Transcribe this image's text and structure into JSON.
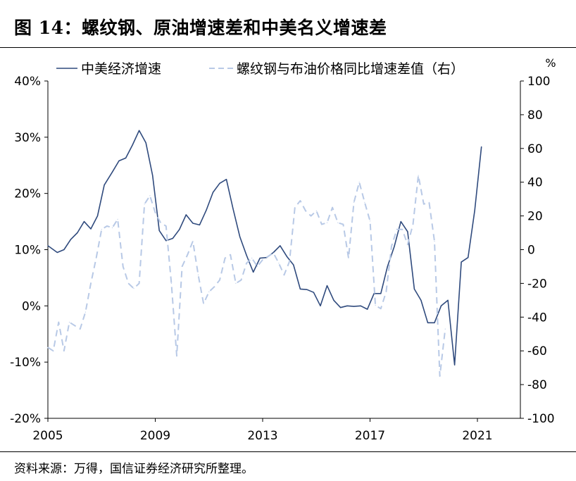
{
  "title": "图 14：螺纹钢、原油增速差和中美名义增速差",
  "source": "资料来源：万得，国信证券经济研究所整理。",
  "chart_data": {
    "type": "line",
    "x_ticks": [
      "2005",
      "2009",
      "2013",
      "2017",
      "2021"
    ],
    "x_range": [
      2005,
      2022.6
    ],
    "y_left": {
      "range": [
        -20,
        40
      ],
      "ticks": [
        "40%",
        "30%",
        "20%",
        "10%",
        "0%",
        "-10%",
        "-20%"
      ]
    },
    "y_right": {
      "range": [
        -100,
        100
      ],
      "ticks": [
        "100",
        "80",
        "60",
        "40",
        "20",
        "0",
        "-20",
        "-40",
        "-60",
        "-80",
        "-100"
      ],
      "unit": "%"
    },
    "legend_position": "top",
    "series": [
      {
        "name": "中美经济增速",
        "axis": "left",
        "color": "#2f4a7d",
        "style": "solid",
        "points": [
          [
            2005.0,
            10.7
          ],
          [
            2005.35,
            9.5
          ],
          [
            2005.6,
            10.0
          ],
          [
            2005.85,
            11.8
          ],
          [
            2006.1,
            13.0
          ],
          [
            2006.35,
            15.0
          ],
          [
            2006.6,
            13.7
          ],
          [
            2006.85,
            16.0
          ],
          [
            2007.1,
            21.5
          ],
          [
            2007.4,
            23.8
          ],
          [
            2007.65,
            25.8
          ],
          [
            2007.9,
            26.3
          ],
          [
            2008.15,
            28.6
          ],
          [
            2008.4,
            31.2
          ],
          [
            2008.65,
            29.0
          ],
          [
            2008.9,
            23.2
          ],
          [
            2009.15,
            13.4
          ],
          [
            2009.4,
            11.6
          ],
          [
            2009.65,
            12.0
          ],
          [
            2009.9,
            13.6
          ],
          [
            2010.15,
            16.2
          ],
          [
            2010.4,
            14.7
          ],
          [
            2010.65,
            14.4
          ],
          [
            2010.9,
            17.0
          ],
          [
            2011.15,
            20.2
          ],
          [
            2011.4,
            21.8
          ],
          [
            2011.65,
            22.5
          ],
          [
            2011.9,
            17.2
          ],
          [
            2012.15,
            12.3
          ],
          [
            2012.4,
            9.0
          ],
          [
            2012.65,
            6.0
          ],
          [
            2012.9,
            8.5
          ],
          [
            2013.15,
            8.6
          ],
          [
            2013.4,
            9.5
          ],
          [
            2013.65,
            10.7
          ],
          [
            2013.9,
            8.8
          ],
          [
            2014.15,
            7.3
          ],
          [
            2014.4,
            3.0
          ],
          [
            2014.65,
            2.9
          ],
          [
            2014.9,
            2.4
          ],
          [
            2015.15,
            0.0
          ],
          [
            2015.4,
            3.6
          ],
          [
            2015.65,
            1.0
          ],
          [
            2015.9,
            -0.3
          ],
          [
            2016.15,
            0.0
          ],
          [
            2016.4,
            -0.1
          ],
          [
            2016.65,
            0.0
          ],
          [
            2016.9,
            -0.6
          ],
          [
            2017.15,
            2.2
          ],
          [
            2017.4,
            2.2
          ],
          [
            2017.65,
            7.0
          ],
          [
            2017.9,
            10.5
          ],
          [
            2018.15,
            15.0
          ],
          [
            2018.4,
            13.2
          ],
          [
            2018.65,
            3.0
          ],
          [
            2018.9,
            1.0
          ],
          [
            2019.15,
            -3.0
          ],
          [
            2019.4,
            -3.0
          ],
          [
            2019.65,
            0.0
          ],
          [
            2019.9,
            1.0
          ],
          [
            2020.15,
            -10.5
          ],
          [
            2020.4,
            7.8
          ],
          [
            2020.65,
            8.6
          ],
          [
            2020.9,
            17.0
          ],
          [
            2021.15,
            28.3
          ]
        ]
      },
      {
        "name": "螺纹钢与布油价格同比增速差值（右）",
        "axis": "right",
        "color": "#b8c9e6",
        "style": "dashed",
        "points": [
          [
            2005.0,
            -58
          ],
          [
            2005.2,
            -60
          ],
          [
            2005.4,
            -43
          ],
          [
            2005.6,
            -60
          ],
          [
            2005.8,
            -43
          ],
          [
            2006.0,
            -45
          ],
          [
            2006.2,
            -47
          ],
          [
            2006.4,
            -37
          ],
          [
            2006.6,
            -20
          ],
          [
            2006.8,
            -5
          ],
          [
            2007.0,
            12
          ],
          [
            2007.2,
            14
          ],
          [
            2007.4,
            13
          ],
          [
            2007.6,
            18
          ],
          [
            2007.8,
            -10
          ],
          [
            2008.0,
            -20
          ],
          [
            2008.2,
            -23
          ],
          [
            2008.4,
            -20
          ],
          [
            2008.6,
            27
          ],
          [
            2008.8,
            32
          ],
          [
            2009.0,
            22
          ],
          [
            2009.2,
            16
          ],
          [
            2009.4,
            14
          ],
          [
            2009.6,
            -20
          ],
          [
            2009.8,
            -63
          ],
          [
            2010.0,
            -10
          ],
          [
            2010.2,
            -3
          ],
          [
            2010.4,
            5
          ],
          [
            2010.6,
            -15
          ],
          [
            2010.8,
            -32
          ],
          [
            2011.0,
            -25
          ],
          [
            2011.2,
            -22
          ],
          [
            2011.4,
            -18
          ],
          [
            2011.6,
            -5
          ],
          [
            2011.8,
            -3
          ],
          [
            2012.0,
            -20
          ],
          [
            2012.2,
            -18
          ],
          [
            2012.4,
            -8
          ],
          [
            2012.6,
            -5
          ],
          [
            2012.8,
            -10
          ],
          [
            2013.0,
            -6
          ],
          [
            2013.2,
            -4
          ],
          [
            2013.4,
            -2
          ],
          [
            2013.6,
            -8
          ],
          [
            2013.8,
            -15
          ],
          [
            2014.0,
            -7
          ],
          [
            2014.2,
            25
          ],
          [
            2014.4,
            29
          ],
          [
            2014.6,
            23
          ],
          [
            2014.8,
            20
          ],
          [
            2015.0,
            23
          ],
          [
            2015.2,
            15
          ],
          [
            2015.4,
            16
          ],
          [
            2015.6,
            25
          ],
          [
            2015.8,
            16
          ],
          [
            2016.0,
            15
          ],
          [
            2016.2,
            -5
          ],
          [
            2016.4,
            28
          ],
          [
            2016.6,
            40
          ],
          [
            2016.8,
            28
          ],
          [
            2017.0,
            17
          ],
          [
            2017.2,
            -33
          ],
          [
            2017.4,
            -35
          ],
          [
            2017.6,
            -25
          ],
          [
            2017.8,
            2
          ],
          [
            2018.0,
            12
          ],
          [
            2018.2,
            12
          ],
          [
            2018.4,
            3
          ],
          [
            2018.6,
            15
          ],
          [
            2018.8,
            44
          ],
          [
            2019.0,
            27
          ],
          [
            2019.2,
            28
          ],
          [
            2019.4,
            5
          ],
          [
            2019.6,
            -75
          ],
          [
            2019.8,
            -47
          ]
        ]
      }
    ]
  }
}
